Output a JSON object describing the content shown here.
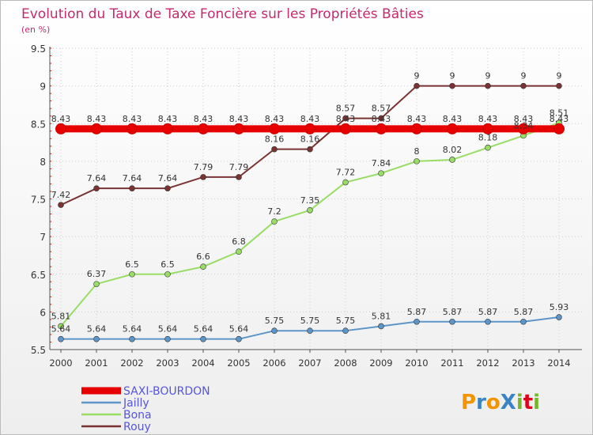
{
  "chart_data": {
    "type": "line",
    "title": "Evolution du Taux de Taxe Foncière sur les Propriétés Bâties",
    "subtitle": "(en %)",
    "xlabel": "",
    "ylabel": "",
    "categories": [
      "2000",
      "2001",
      "2002",
      "2003",
      "2004",
      "2005",
      "2006",
      "2007",
      "2008",
      "2009",
      "2010",
      "2011",
      "2012",
      "2013",
      "2014"
    ],
    "ylim": [
      5.5,
      9.5
    ],
    "yticks": [
      "5.5",
      "6",
      "6.5",
      "7",
      "7.5",
      "8",
      "8.5",
      "9",
      "9.5"
    ],
    "grid": true,
    "legend_position": "bottom-left",
    "series": [
      {
        "name": "SAXI-BOURDON",
        "color": "#e60000",
        "values": [
          8.43,
          8.43,
          8.43,
          8.43,
          8.43,
          8.43,
          8.43,
          8.43,
          8.43,
          8.43,
          8.43,
          8.43,
          8.43,
          8.43,
          8.43
        ],
        "labels": [
          "8.43",
          "8.43",
          "8.43",
          "8.43",
          "8.43",
          "8.43",
          "8.43",
          "8.43",
          "8.43",
          "8.43",
          "8.43",
          "8.43",
          "8.43",
          "8.43",
          "8.43"
        ]
      },
      {
        "name": "Jailly",
        "color": "#5d95c8",
        "values": [
          5.64,
          5.64,
          5.64,
          5.64,
          5.64,
          5.64,
          5.75,
          5.75,
          5.75,
          5.81,
          5.87,
          5.87,
          5.87,
          5.87,
          5.93
        ],
        "labels": [
          "5.64",
          "5.64",
          "5.64",
          "5.64",
          "5.64",
          "5.64",
          "5.75",
          "5.75",
          "5.75",
          "5.81",
          "5.87",
          "5.87",
          "5.87",
          "5.87",
          "5.93"
        ]
      },
      {
        "name": "Bona",
        "color": "#99dd66",
        "values": [
          5.81,
          6.37,
          6.5,
          6.5,
          6.6,
          6.8,
          7.2,
          7.35,
          7.72,
          7.84,
          8,
          8.02,
          8.18,
          8.34,
          8.51
        ],
        "labels": [
          "5.81",
          "6.37",
          "6.5",
          "6.5",
          "6.6",
          "6.8",
          "7.2",
          "7.35",
          "7.72",
          "7.84",
          "8",
          "8.02",
          "8.18",
          "8.34",
          "8.51"
        ]
      },
      {
        "name": "Rouy",
        "color": "#7a3333",
        "values": [
          7.42,
          7.64,
          7.64,
          7.64,
          7.79,
          7.79,
          8.16,
          8.16,
          8.57,
          8.57,
          9,
          9,
          9,
          9,
          9
        ],
        "labels": [
          "7.42",
          "7.64",
          "7.64",
          "7.64",
          "7.79",
          "7.79",
          "8.16",
          "8.16",
          "8.57",
          "8.57",
          "9",
          "9",
          "9",
          "9",
          "9"
        ]
      }
    ],
    "colors": {
      "title": "#c42a6e",
      "legend_text": "#5555dd",
      "axis_text": "#333333",
      "grid": "#cccccc",
      "tick_mark": "#e60000"
    }
  },
  "logo": {
    "text": "ProXiti"
  }
}
